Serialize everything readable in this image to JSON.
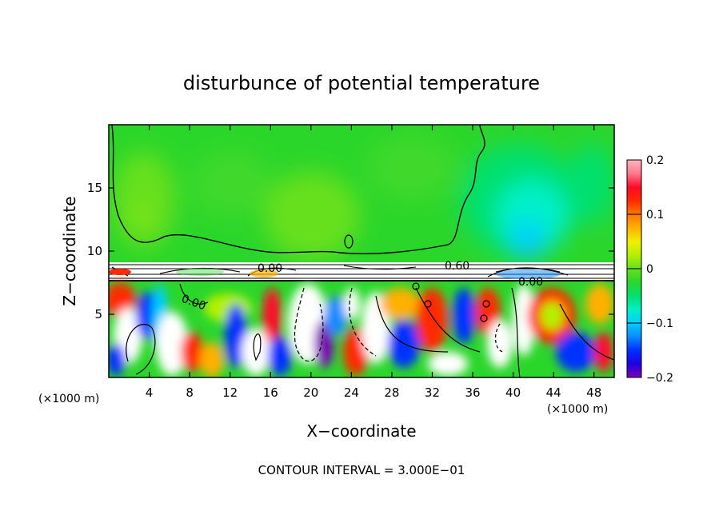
{
  "chart_data": {
    "type": "heatmap",
    "title": "disturbunce of potential temperature",
    "xlabel": "X−coordinate",
    "ylabel": "Z−coordinate",
    "x_unit": "(×1000 m)",
    "x_unit_right": "(×1000 m)",
    "xlim": [
      0,
      50
    ],
    "ylim": [
      0,
      20
    ],
    "xticks": [
      4,
      8,
      12,
      16,
      20,
      24,
      28,
      32,
      36,
      40,
      44,
      48
    ],
    "yticks": [
      5,
      10,
      15
    ],
    "colorbar": {
      "range": [
        -0.2,
        0.2
      ],
      "tick_values": [
        0.2,
        0.1,
        0,
        -0.1,
        -0.2
      ],
      "tick_labels": [
        "0.2",
        "0.1",
        "0",
        "−0.1",
        "−0.2"
      ],
      "colors": [
        "#7e00b8",
        "#1f00e0",
        "#0030ff",
        "#0a8cff",
        "#00cfff",
        "#00f0c8",
        "#00e06e",
        "#2bd62b",
        "#66e01c",
        "#b4f000",
        "#f0f000",
        "#ffb000",
        "#ff7800",
        "#ff2a00",
        "#ff0a2a",
        "#ff7a8c",
        "#ffb4c0"
      ]
    },
    "contour_labels": [
      "0.00",
      "0.60",
      "0.00",
      "0.00"
    ],
    "footnote": "CONTOUR INTERVAL = 3.000E−01",
    "grid": false,
    "legend": "colorbar-right"
  }
}
